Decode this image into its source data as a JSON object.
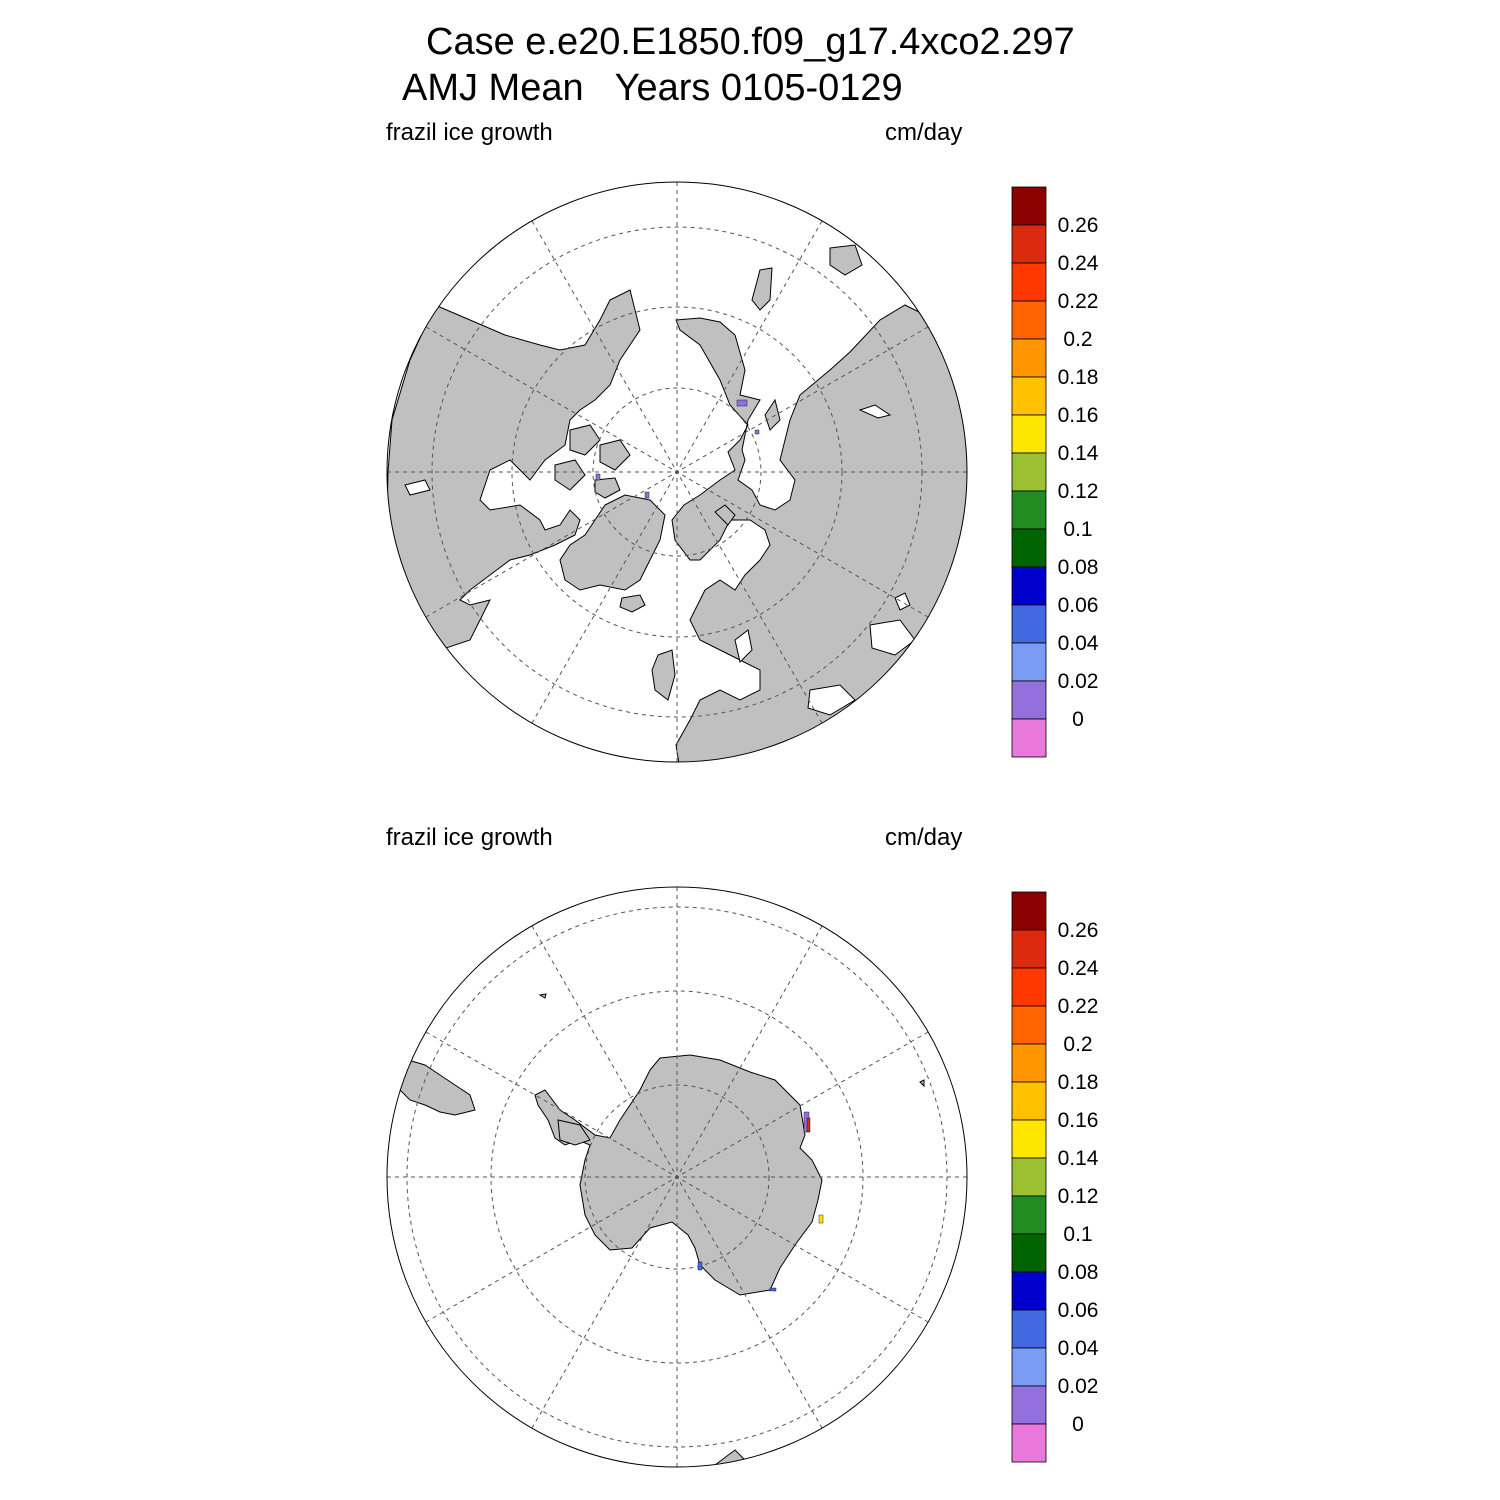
{
  "header": {
    "title_line1": "Case e.e20.E1850.f09_g17.4xco2.297",
    "title_line2": "AMJ Mean   Years 0105-0129"
  },
  "colors": {
    "land": "#c0c0c0",
    "ocean": "#ffffff",
    "grid": "#555555"
  },
  "panels": [
    {
      "id": "north",
      "hemisphere": "Northern Hemisphere polar stereographic",
      "left_label": "frazil ice growth",
      "right_label": "cm/day"
    },
    {
      "id": "south",
      "hemisphere": "Southern Hemisphere polar stereographic",
      "left_label": "frazil ice growth",
      "right_label": "cm/day"
    }
  ],
  "colorbar": {
    "labels": [
      "0.26",
      "0.24",
      "0.22",
      "0.2",
      "0.18",
      "0.16",
      "0.14",
      "0.12",
      "0.1",
      "0.08",
      "0.06",
      "0.04",
      "0.02",
      "0"
    ],
    "colors": [
      "#8b0000",
      "#dc2a0f",
      "#ff3800",
      "#ff6400",
      "#ff9600",
      "#ffc000",
      "#ffe600",
      "#9bc132",
      "#228b22",
      "#006400",
      "#0000cd",
      "#4169e1",
      "#7b9cf5",
      "#9370db",
      "#e878db"
    ]
  }
}
